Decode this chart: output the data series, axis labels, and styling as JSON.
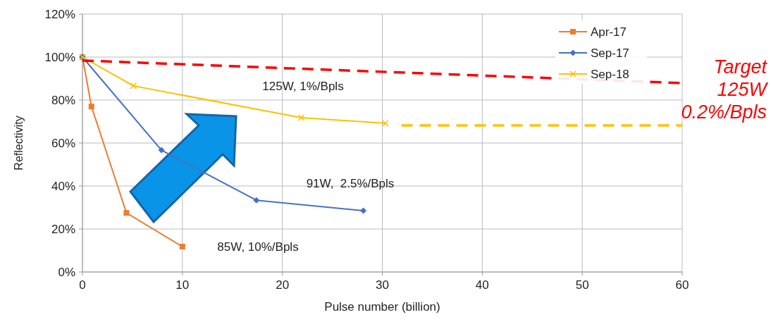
{
  "chart_data": {
    "type": "line",
    "xlabel": "Pulse number (billion)",
    "ylabel": "Reflectivity",
    "xlim": [
      0,
      60
    ],
    "xticks": [
      0,
      10,
      20,
      30,
      40,
      50,
      60
    ],
    "ylim": [
      0,
      120
    ],
    "yticks": [
      {
        "value": 0,
        "label": "0%"
      },
      {
        "value": 20,
        "label": "20%"
      },
      {
        "value": 40,
        "label": "40%"
      },
      {
        "value": 60,
        "label": "60%"
      },
      {
        "value": 80,
        "label": "80%"
      },
      {
        "value": 100,
        "label": "100%"
      },
      {
        "value": 120,
        "label": "120%"
      }
    ],
    "grid": true,
    "legend": "top right",
    "line_style": "solid",
    "series": [
      {
        "name": "Apr-17",
        "color": "#ed7d31",
        "marker": "square",
        "x": [
          0,
          0.9,
          4.4,
          10
        ],
        "values": [
          100,
          77,
          27.5,
          11.8
        ]
      },
      {
        "name": "Sep-17",
        "color": "#4472c4",
        "marker": "diamond",
        "x": [
          0,
          7.9,
          17.4,
          28.1
        ],
        "values": [
          100,
          56.7,
          33.4,
          28.5
        ]
      },
      {
        "name": "Sep-18",
        "color": "#ffc000",
        "marker": "cross",
        "x": [
          0,
          5.1,
          21.9,
          30.3
        ],
        "values": [
          100,
          86.6,
          71.8,
          69.2
        ]
      },
      {
        "color": "#ff0000",
        "marker": "none",
        "line_style": "dashed",
        "x": [
          0,
          60
        ],
        "values": [
          98.4,
          87.9
        ]
      },
      {
        "color": "#ffc000",
        "marker": "none",
        "line_style": "dashed",
        "x": [
          31.9,
          60
        ],
        "values": [
          68.2,
          68.2
        ]
      }
    ],
    "annotations": [
      "125W, 1%/Bpls",
      "91W,  2.5%/Bpls",
      "85W, 10%/Bpls",
      {
        "text": "Target\n125W\n0.2%/Bpls",
        "x": 60,
        "y": 88
      }
    ]
  }
}
